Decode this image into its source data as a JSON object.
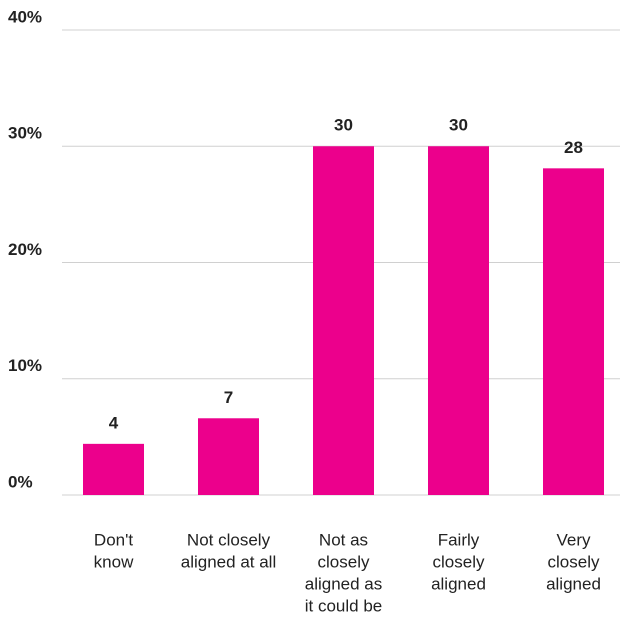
{
  "chart_data": {
    "type": "bar",
    "categories": [
      [
        "Don't",
        "know"
      ],
      [
        "Not closely",
        "aligned at all"
      ],
      [
        "Not as",
        "closely",
        "aligned as",
        "it could be"
      ],
      [
        "Fairly",
        "closely",
        "aligned"
      ],
      [
        "Very",
        "closely",
        "aligned"
      ]
    ],
    "values": [
      4.4,
      6.6,
      30,
      30,
      28.1
    ],
    "value_labels": [
      "4",
      "7",
      "30",
      "30",
      "28"
    ],
    "color": "#ec008c",
    "ylim": [
      0,
      40
    ],
    "yticks": [
      {
        "value": 0,
        "label": "0%"
      },
      {
        "value": 10,
        "label": "10%"
      },
      {
        "value": 20,
        "label": "20%"
      },
      {
        "value": 30,
        "label": "30%"
      },
      {
        "value": 40,
        "label": "40%"
      }
    ],
    "grid": true
  }
}
